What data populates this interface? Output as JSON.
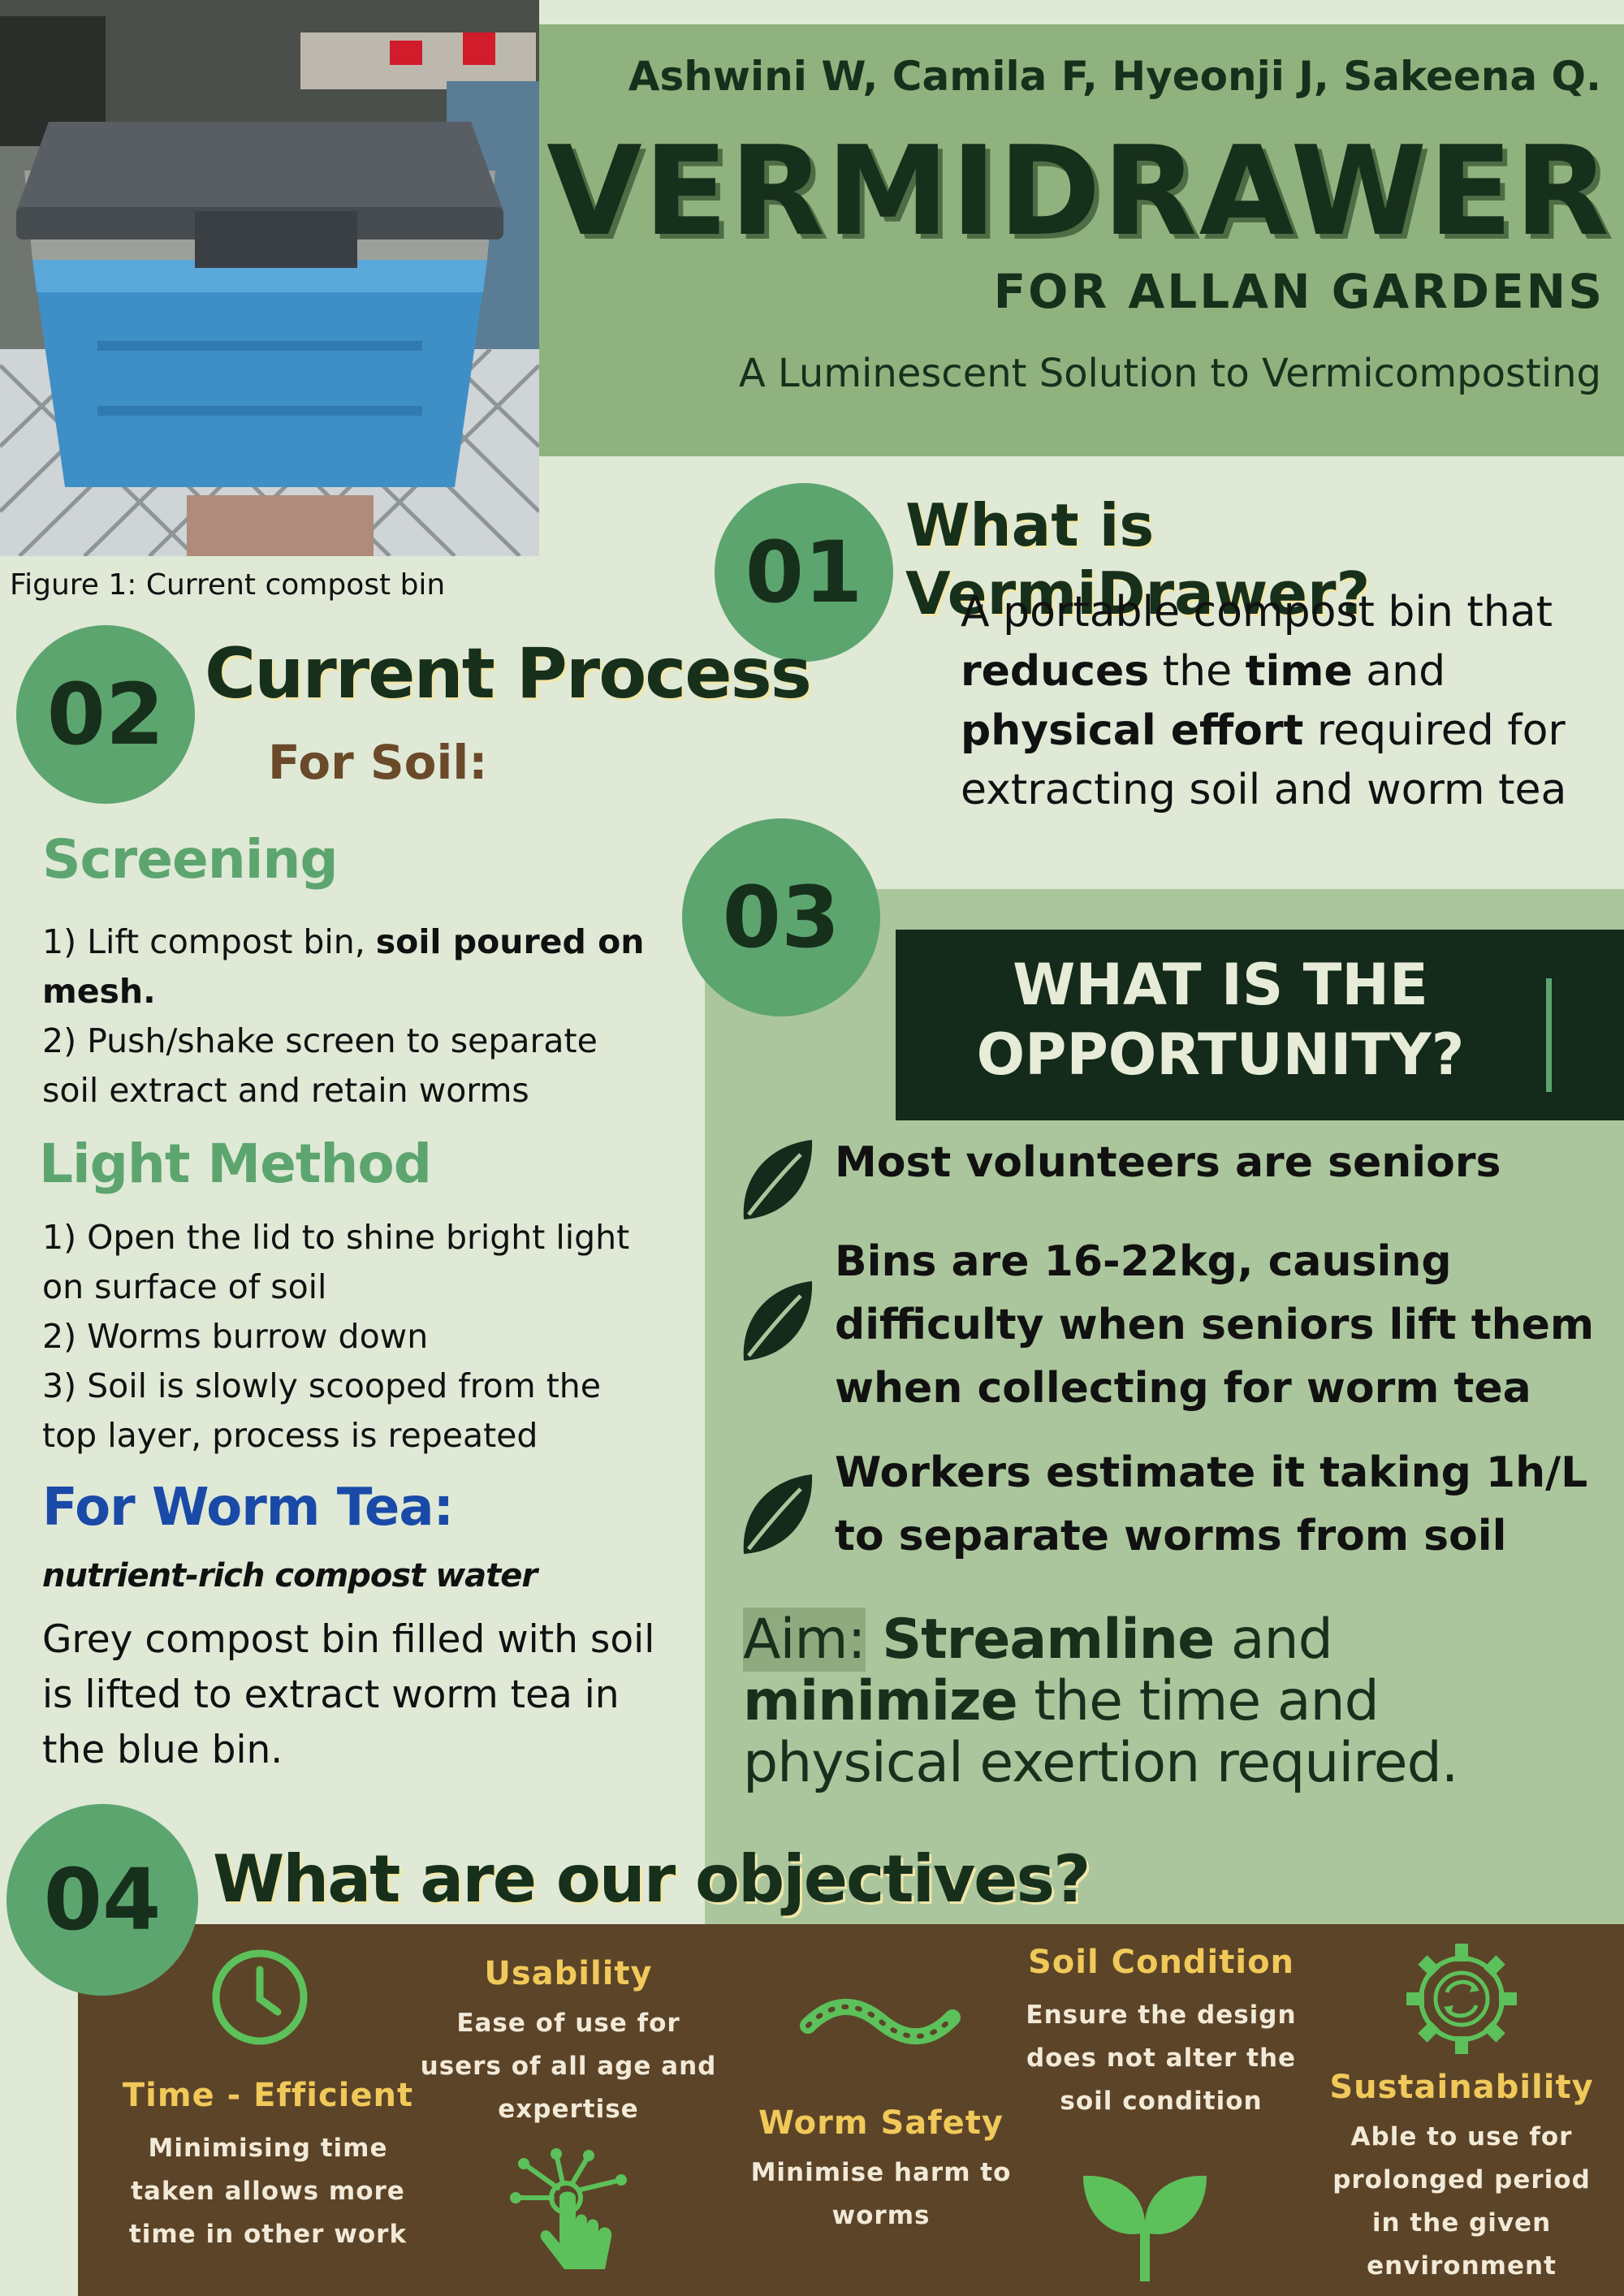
{
  "header": {
    "authors": "Ashwini W, Camila F, Hyeonji J, Sakeena Q.",
    "title": "VERMIDRAWER",
    "subtitle": "FOR ALLAN GARDENS",
    "tagline": "A Luminescent Solution to Vermicomposting"
  },
  "figure": {
    "caption": "Figure 1: Current compost bin"
  },
  "section1": {
    "number": "01",
    "heading": "What is VermiDrawer?",
    "desc": {
      "t1": "A portable compost bin that",
      "t2": "reduces",
      "t3": " the ",
      "t4": "time",
      "t5": " and",
      "t6": "physical effort",
      "t7": " required for",
      "t8": "extracting soil and worm tea"
    }
  },
  "section2": {
    "number": "02",
    "heading": "Current Process",
    "for_soil": "For Soil:",
    "screening": {
      "heading": "Screening",
      "s1a": "1)  Lift compost bin, ",
      "s1b": "soil poured on mesh.",
      "s2": "2) Push/shake screen to separate soil extract and retain worms"
    },
    "light": {
      "heading": "Light Method",
      "s1": "1) Open the lid to shine bright light on surface of soil",
      "s2": "2) Worms burrow down",
      "s3": "3) Soil is slowly scooped from the top layer, process is repeated"
    },
    "tea": {
      "heading": "For Worm Tea:",
      "sub": "nutrient-rich compost water",
      "desc": "Grey compost bin filled with soil is lifted to extract worm tea in the blue bin."
    }
  },
  "section3": {
    "number": "03",
    "opportunity_line1": "WHAT IS THE",
    "opportunity_line2": "OPPORTUNITY?",
    "bullets": [
      "Most volunteers are seniors",
      "Bins are 16-22kg, causing difficulty when seniors lift them when collecting for worm tea",
      "Workers estimate it taking 1h/L to separate worms from soil"
    ],
    "aim": {
      "label": "Aim:",
      "w1": "Streamline",
      "w2": " and ",
      "w3": "minimize",
      "rest": " the time and physical exertion required."
    }
  },
  "section4": {
    "number": "04",
    "heading": "What are our objectives?",
    "objectives": [
      {
        "title": "Time - Efficient",
        "desc": "Minimising time taken allows more time in other work",
        "icon": "clock-icon"
      },
      {
        "title": "Usability",
        "desc": "Ease of use for users of all age and expertise",
        "icon": "touch-icon"
      },
      {
        "title": "Worm Safety",
        "desc": "Minimise harm to worms",
        "icon": "worm-icon"
      },
      {
        "title": "Soil Condition",
        "desc": "Ensure the design does not alter the soil condition",
        "icon": "sprout-icon"
      },
      {
        "title": "Sustainability",
        "desc": "Able to use for prolonged period in the given environment",
        "icon": "recycle-gear-icon"
      }
    ]
  },
  "colors": {
    "background": "#dfe9d6",
    "header_green": "#90b27e",
    "circle_green": "#5da56f",
    "dark_green": "#17301c",
    "panel_green": "#abc69d",
    "brown": "#5c4428",
    "gold": "#f0c95a",
    "blue_heading": "#1a4aa8"
  }
}
